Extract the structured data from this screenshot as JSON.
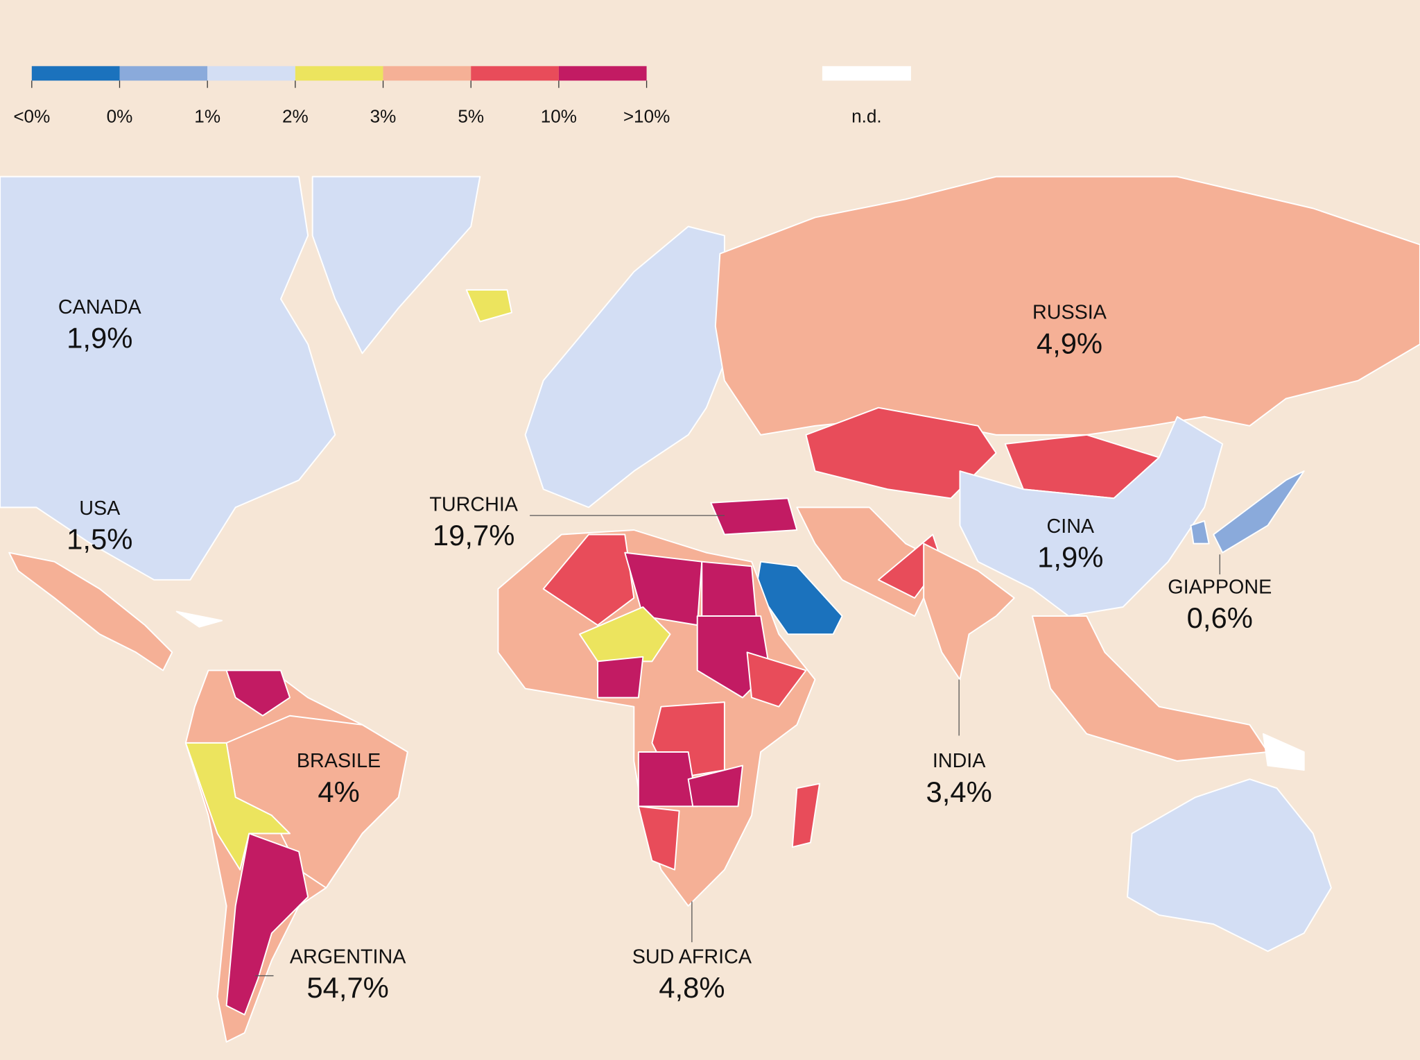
{
  "legend": {
    "segments": [
      "#1b72bd",
      "#8aaadb",
      "#d3def4",
      "#ece45e",
      "#f5b096",
      "#e84c5a",
      "#c21b63"
    ],
    "ticks": [
      "<0%",
      "0%",
      "1%",
      "2%",
      "3%",
      "5%",
      "10%",
      ">10%"
    ],
    "nd": {
      "label": "n.d.",
      "color": "#ffffff"
    }
  },
  "labels": [
    {
      "name": "CANADA",
      "value": "1,9%"
    },
    {
      "name": "USA",
      "value": "1,5%"
    },
    {
      "name": "TURCHIA",
      "value": "19,7%"
    },
    {
      "name": "RUSSIA",
      "value": "4,9%"
    },
    {
      "name": "CINA",
      "value": "1,9%"
    },
    {
      "name": "GIAPPONE",
      "value": "0,6%"
    },
    {
      "name": "BRASILE",
      "value": "4%"
    },
    {
      "name": "INDIA",
      "value": "3,4%"
    },
    {
      "name": "ARGENTINA",
      "value": "54,7%"
    },
    {
      "name": "SUD AFRICA",
      "value": "4,8%"
    }
  ]
}
